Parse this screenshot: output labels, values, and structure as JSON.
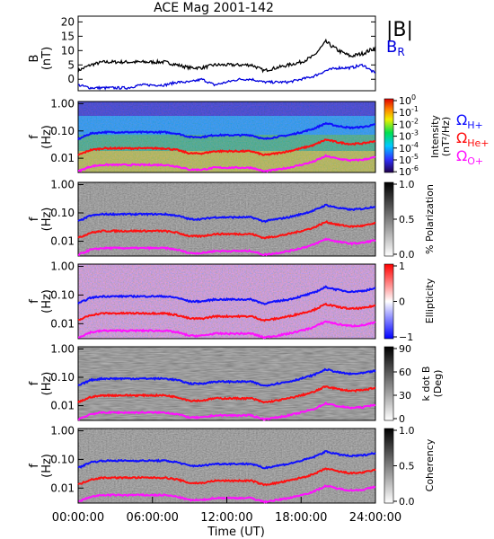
{
  "title": "ACE Mag 2001-142",
  "x_axis": {
    "label": "Time (UT)",
    "ticks": [
      "00:00:00",
      "06:00:00",
      "12:00:00",
      "18:00:00",
      "24:00:00"
    ],
    "range_hours": [
      0,
      24
    ]
  },
  "colors": {
    "B_total": "#000000",
    "B_R": "#0000dd",
    "H_plus": "#1010ff",
    "He_plus": "#ff1010",
    "O_plus": "#ff10ff"
  },
  "panels": {
    "mag": {
      "ylabel_top": "B",
      "ylabel_bottom": "(nT)",
      "yticks": [
        "20",
        "15",
        "10",
        "5",
        "0"
      ],
      "legend_total": "|B|",
      "legend_r": "B",
      "legend_r_sub": "R"
    },
    "freq_axis": {
      "ylabel_top": "f",
      "ylabel_bottom": "(Hz)",
      "yticks": [
        "1.00",
        "0.10",
        "0.01"
      ]
    },
    "intensity": {
      "cb_ticks": [
        "10",
        "10",
        "10",
        "10",
        "10",
        "10",
        "10"
      ],
      "cb_exps": [
        "0",
        "-1",
        "-2",
        "-3",
        "-4",
        "-5",
        "-6"
      ],
      "cb_label": "Intensity",
      "cb_unit": "(nT²/Hz)",
      "legend_h": "Ω",
      "legend_h_sub": "H+",
      "legend_he": "Ω",
      "legend_he_sub": "He+",
      "legend_o": "Ω",
      "legend_o_sub": "O+"
    },
    "polarization": {
      "cb_ticks": [
        "1.0",
        "0.5",
        "0.0"
      ],
      "cb_label": "% Polarization"
    },
    "ellipticity": {
      "cb_ticks": [
        "1",
        "0",
        "−1"
      ],
      "cb_label": "Ellipticity"
    },
    "kdotb": {
      "cb_ticks": [
        "90",
        "60",
        "30",
        "0"
      ],
      "cb_label_1": "k dot B",
      "cb_label_2": "(Deg)"
    },
    "coherency": {
      "cb_ticks": [
        "1.0",
        "0.5",
        "0.0"
      ],
      "cb_label": "Coherency"
    }
  },
  "chart_data": {
    "type": "line",
    "title": "ACE Mag 2001-142",
    "xlabel": "Time (UT)",
    "ylabel": "B (nT)",
    "xlim": [
      0,
      24
    ],
    "ylim": [
      -4,
      22
    ],
    "x": [
      0,
      1,
      2,
      3,
      4,
      5,
      6,
      7,
      8,
      9,
      10,
      11,
      12,
      13,
      14,
      15,
      16,
      17,
      18,
      19,
      20,
      21,
      22,
      23,
      24
    ],
    "series": [
      {
        "name": "|B|",
        "values": [
          3,
          5,
          6,
          6,
          6,
          6,
          6,
          6,
          5,
          4,
          4,
          5,
          5,
          5,
          5,
          3,
          4,
          5,
          6,
          8,
          13,
          10,
          8,
          9,
          11
        ]
      },
      {
        "name": "B_R",
        "values": [
          -2,
          -3,
          -3,
          -3,
          -3,
          -2,
          -2,
          -2,
          -1,
          -1,
          0,
          -2,
          -1,
          0,
          0,
          -1,
          -1,
          -1,
          0,
          1,
          3,
          4,
          4,
          5,
          2
        ]
      }
    ],
    "gyrofrequencies_hz": {
      "x": [
        0,
        1,
        2,
        3,
        4,
        5,
        6,
        7,
        8,
        9,
        10,
        11,
        12,
        13,
        14,
        15,
        16,
        17,
        18,
        19,
        20,
        21,
        22,
        23,
        24
      ],
      "H+": [
        0.05,
        0.08,
        0.09,
        0.09,
        0.09,
        0.09,
        0.09,
        0.09,
        0.08,
        0.06,
        0.06,
        0.07,
        0.07,
        0.07,
        0.07,
        0.05,
        0.06,
        0.07,
        0.09,
        0.12,
        0.19,
        0.15,
        0.13,
        0.14,
        0.17
      ],
      "He+": [
        0.013,
        0.02,
        0.023,
        0.023,
        0.023,
        0.023,
        0.023,
        0.023,
        0.02,
        0.015,
        0.015,
        0.018,
        0.018,
        0.018,
        0.018,
        0.013,
        0.015,
        0.018,
        0.023,
        0.03,
        0.048,
        0.038,
        0.033,
        0.035,
        0.043
      ],
      "O+": [
        0.0033,
        0.005,
        0.0057,
        0.0057,
        0.0057,
        0.0057,
        0.0057,
        0.0057,
        0.005,
        0.0038,
        0.0038,
        0.0045,
        0.0045,
        0.0045,
        0.0045,
        0.0033,
        0.0038,
        0.0045,
        0.0057,
        0.0075,
        0.012,
        0.0095,
        0.0083,
        0.0088,
        0.011
      ]
    },
    "freq_ylim_hz": [
      0.003,
      1.2
    ]
  }
}
